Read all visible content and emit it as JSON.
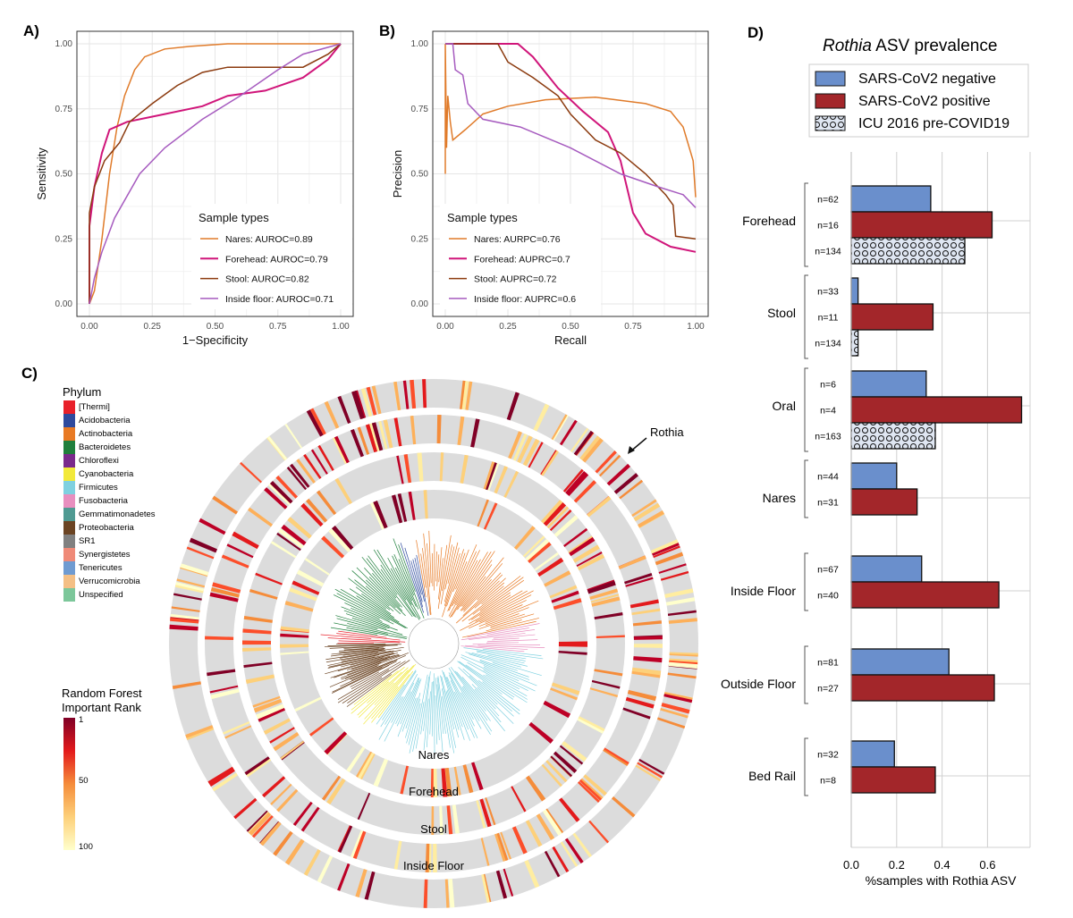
{
  "colors": {
    "nares": "#e07b2a",
    "forehead": "#d0157a",
    "stool": "#8b3a0e",
    "inside_floor": "#a65bbf",
    "neg": "#6a8fcc",
    "pos": "#a3262a",
    "icu": "#dfe6f2"
  },
  "chart_data": [
    {
      "panel": "A)",
      "type": "line",
      "xlabel": "1−Specificity",
      "ylabel": "Sensitivity",
      "xlim": [
        0,
        1
      ],
      "ylim": [
        0,
        1
      ],
      "xticks": [
        "0.00",
        "0.25",
        "0.50",
        "0.75",
        "1.00"
      ],
      "yticks": [
        "0.00",
        "0.25",
        "0.50",
        "0.75",
        "1.00"
      ],
      "grid": true,
      "legend_title": "Sample types",
      "legend_position": "bottom-right",
      "series": [
        {
          "name": "Nares: AUROC=0.89",
          "color_key": "nares",
          "points": [
            [
              0,
              0
            ],
            [
              0.02,
              0.05
            ],
            [
              0.05,
              0.25
            ],
            [
              0.08,
              0.5
            ],
            [
              0.11,
              0.68
            ],
            [
              0.14,
              0.8
            ],
            [
              0.18,
              0.9
            ],
            [
              0.22,
              0.95
            ],
            [
              0.3,
              0.98
            ],
            [
              0.4,
              0.99
            ],
            [
              0.55,
              1
            ],
            [
              1,
              1
            ]
          ]
        },
        {
          "name": "Forehead: AUROC=0.79",
          "color_key": "forehead",
          "points": [
            [
              0,
              0
            ],
            [
              0,
              0.3
            ],
            [
              0.02,
              0.45
            ],
            [
              0.05,
              0.58
            ],
            [
              0.08,
              0.67
            ],
            [
              0.15,
              0.7
            ],
            [
              0.3,
              0.73
            ],
            [
              0.45,
              0.76
            ],
            [
              0.55,
              0.8
            ],
            [
              0.7,
              0.82
            ],
            [
              0.85,
              0.87
            ],
            [
              0.95,
              0.94
            ],
            [
              1,
              1
            ]
          ]
        },
        {
          "name": "Stool: AUROC=0.82",
          "color_key": "stool",
          "points": [
            [
              0,
              0
            ],
            [
              0,
              0.35
            ],
            [
              0.02,
              0.45
            ],
            [
              0.06,
              0.55
            ],
            [
              0.12,
              0.62
            ],
            [
              0.16,
              0.7
            ],
            [
              0.25,
              0.77
            ],
            [
              0.35,
              0.84
            ],
            [
              0.45,
              0.89
            ],
            [
              0.55,
              0.91
            ],
            [
              0.85,
              0.91
            ],
            [
              0.95,
              0.96
            ],
            [
              1,
              1
            ]
          ]
        },
        {
          "name": "Inside floor: AUROC=0.71",
          "color_key": "inside_floor",
          "points": [
            [
              0,
              0
            ],
            [
              0.02,
              0.1
            ],
            [
              0.05,
              0.2
            ],
            [
              0.1,
              0.33
            ],
            [
              0.2,
              0.5
            ],
            [
              0.3,
              0.6
            ],
            [
              0.45,
              0.71
            ],
            [
              0.6,
              0.8
            ],
            [
              0.75,
              0.9
            ],
            [
              0.85,
              0.96
            ],
            [
              1,
              1
            ]
          ]
        }
      ]
    },
    {
      "panel": "B)",
      "type": "line",
      "xlabel": "Recall",
      "ylabel": "Precision",
      "xlim": [
        0,
        1
      ],
      "ylim": [
        0,
        1
      ],
      "xticks": [
        "0.00",
        "0.25",
        "0.50",
        "0.75",
        "1.00"
      ],
      "yticks": [
        "0.00",
        "0.25",
        "0.50",
        "0.75",
        "1.00"
      ],
      "grid": true,
      "legend_title": "Sample types",
      "legend_position": "bottom-left",
      "series": [
        {
          "name": "Nares: AURPC=0.76",
          "color_key": "nares",
          "points": [
            [
              0,
              0.5
            ],
            [
              0,
              1
            ],
            [
              0.005,
              0.6
            ],
            [
              0.01,
              0.8
            ],
            [
              0.02,
              0.7
            ],
            [
              0.03,
              0.63
            ],
            [
              0.08,
              0.67
            ],
            [
              0.15,
              0.73
            ],
            [
              0.25,
              0.76
            ],
            [
              0.4,
              0.785
            ],
            [
              0.6,
              0.795
            ],
            [
              0.8,
              0.77
            ],
            [
              0.9,
              0.74
            ],
            [
              0.95,
              0.68
            ],
            [
              0.99,
              0.55
            ],
            [
              1,
              0.41
            ]
          ]
        },
        {
          "name": "Forehead: AUPRC=0.7",
          "color_key": "forehead",
          "points": [
            [
              0,
              1
            ],
            [
              0.29,
              1
            ],
            [
              0.35,
              0.95
            ],
            [
              0.45,
              0.83
            ],
            [
              0.55,
              0.74
            ],
            [
              0.65,
              0.66
            ],
            [
              0.7,
              0.55
            ],
            [
              0.75,
              0.35
            ],
            [
              0.8,
              0.27
            ],
            [
              0.9,
              0.22
            ],
            [
              1,
              0.2
            ]
          ]
        },
        {
          "name": "Stool: AUPRC=0.72",
          "color_key": "stool",
          "points": [
            [
              0,
              1
            ],
            [
              0.21,
              1
            ],
            [
              0.25,
              0.93
            ],
            [
              0.35,
              0.87
            ],
            [
              0.45,
              0.8
            ],
            [
              0.5,
              0.73
            ],
            [
              0.6,
              0.63
            ],
            [
              0.7,
              0.58
            ],
            [
              0.8,
              0.5
            ],
            [
              0.88,
              0.42
            ],
            [
              0.91,
              0.38
            ],
            [
              0.92,
              0.26
            ],
            [
              1,
              0.25
            ]
          ]
        },
        {
          "name": "Inside floor: AUPRC=0.6",
          "color_key": "inside_floor",
          "points": [
            [
              0,
              1
            ],
            [
              0.03,
              1
            ],
            [
              0.04,
              0.9
            ],
            [
              0.07,
              0.88
            ],
            [
              0.09,
              0.77
            ],
            [
              0.15,
              0.71
            ],
            [
              0.3,
              0.68
            ],
            [
              0.5,
              0.6
            ],
            [
              0.7,
              0.5
            ],
            [
              0.85,
              0.45
            ],
            [
              0.95,
              0.42
            ],
            [
              1,
              0.37
            ]
          ]
        }
      ]
    },
    {
      "panel": "C)",
      "type": "circular-tree-heatmap",
      "ring_labels": [
        "Nares",
        "Forehead",
        "Stool",
        "Inside Floor"
      ],
      "annotation": "Rothia",
      "phylum_legend_title": "Phylum",
      "phyla": [
        {
          "name": "[Thermi]",
          "color": "#e8202a"
        },
        {
          "name": "Acidobacteria",
          "color": "#2e4a9e"
        },
        {
          "name": "Actinobacteria",
          "color": "#e87a24"
        },
        {
          "name": "Bacteroidetes",
          "color": "#1f7f3c"
        },
        {
          "name": "Chloroflexi",
          "color": "#7a2a8c"
        },
        {
          "name": "Cyanobacteria",
          "color": "#f2e93a"
        },
        {
          "name": "Firmicutes",
          "color": "#7fd1e0"
        },
        {
          "name": "Fusobacteria",
          "color": "#e88fbf"
        },
        {
          "name": "Gemmatimonadetes",
          "color": "#4f9a92"
        },
        {
          "name": "Proteobacteria",
          "color": "#6b4423"
        },
        {
          "name": "SR1",
          "color": "#808080"
        },
        {
          "name": "Synergistetes",
          "color": "#ef8a78"
        },
        {
          "name": "Tenericutes",
          "color": "#6f9bd1"
        },
        {
          "name": "Verrucomicrobia",
          "color": "#f4bf85"
        },
        {
          "name": "Unspecified",
          "color": "#7cc79a"
        }
      ],
      "rank_legend_title": [
        "Random Forest",
        "Important Rank"
      ],
      "rank_ticks": [
        "1",
        "50",
        "100"
      ]
    },
    {
      "panel": "D)",
      "type": "bar",
      "orientation": "horizontal",
      "title_italic": "Rothia",
      "title_rest": " ASV prevalence",
      "xlabel": "%samples with Rothia ASV",
      "xlim": [
        0,
        0.78
      ],
      "xticks": [
        "0.0",
        "0.2",
        "0.4",
        "0.6"
      ],
      "legend_position": "top",
      "series": [
        {
          "name": "SARS-CoV2 negative",
          "color_key": "neg"
        },
        {
          "name": "SARS-CoV2 positive",
          "color_key": "pos"
        },
        {
          "name": "ICU 2016 pre-COVID19",
          "color_key": "icu",
          "pattern": "circles"
        }
      ],
      "categories": [
        {
          "name": "Forehead",
          "bars": [
            {
              "series": 0,
              "value": 0.35,
              "n": "n=62"
            },
            {
              "series": 1,
              "value": 0.62,
              "n": "n=16"
            },
            {
              "series": 2,
              "value": 0.5,
              "n": "n=134"
            }
          ]
        },
        {
          "name": "Stool",
          "bars": [
            {
              "series": 0,
              "value": 0.03,
              "n": "n=33"
            },
            {
              "series": 1,
              "value": 0.36,
              "n": "n=11"
            },
            {
              "series": 2,
              "value": 0.03,
              "n": "n=134"
            }
          ]
        },
        {
          "name": "Oral",
          "bars": [
            {
              "series": 0,
              "value": 0.33,
              "n": "n=6"
            },
            {
              "series": 1,
              "value": 0.75,
              "n": "n=4"
            },
            {
              "series": 2,
              "value": 0.37,
              "n": "n=163"
            }
          ]
        },
        {
          "name": "Nares",
          "bars": [
            {
              "series": 0,
              "value": 0.2,
              "n": "n=44"
            },
            {
              "series": 1,
              "value": 0.29,
              "n": "n=31"
            }
          ]
        },
        {
          "name": "Inside Floor",
          "bars": [
            {
              "series": 0,
              "value": 0.31,
              "n": "n=67"
            },
            {
              "series": 1,
              "value": 0.65,
              "n": "n=40"
            }
          ]
        },
        {
          "name": "Outside Floor",
          "bars": [
            {
              "series": 0,
              "value": 0.43,
              "n": "n=81"
            },
            {
              "series": 1,
              "value": 0.63,
              "n": "n=27"
            }
          ]
        },
        {
          "name": "Bed Rail",
          "bars": [
            {
              "series": 0,
              "value": 0.19,
              "n": "n=32"
            },
            {
              "series": 1,
              "value": 0.37,
              "n": "n=8"
            }
          ]
        }
      ]
    }
  ]
}
